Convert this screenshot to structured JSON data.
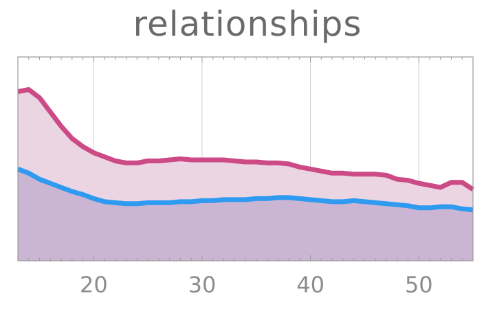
{
  "chart_data": {
    "type": "area",
    "title": "relationships",
    "xlabel": "",
    "ylabel": "",
    "xlim": [
      13,
      55
    ],
    "ylim": [
      0,
      1
    ],
    "x_ticks": [
      20,
      30,
      40,
      50
    ],
    "grid": "vertical",
    "colors": {
      "upper_line": "#cc4a86",
      "upper_fill": "#ecd5e2",
      "lower_line": "#2e9af0",
      "lower_fill": "#cab5d3"
    },
    "x": [
      13,
      14,
      15,
      16,
      17,
      18,
      19,
      20,
      21,
      22,
      23,
      24,
      25,
      26,
      27,
      28,
      29,
      30,
      31,
      32,
      33,
      34,
      35,
      36,
      37,
      38,
      39,
      40,
      41,
      42,
      43,
      44,
      45,
      46,
      47,
      48,
      49,
      50,
      51,
      52,
      53,
      54,
      55
    ],
    "series": [
      {
        "key": "upper",
        "values": [
          0.83,
          0.84,
          0.8,
          0.73,
          0.66,
          0.6,
          0.56,
          0.53,
          0.51,
          0.49,
          0.48,
          0.48,
          0.49,
          0.49,
          0.495,
          0.5,
          0.495,
          0.495,
          0.495,
          0.495,
          0.49,
          0.485,
          0.485,
          0.48,
          0.48,
          0.475,
          0.46,
          0.45,
          0.44,
          0.43,
          0.43,
          0.425,
          0.425,
          0.425,
          0.42,
          0.4,
          0.395,
          0.38,
          0.37,
          0.36,
          0.385,
          0.385,
          0.35
        ]
      },
      {
        "key": "lower",
        "values": [
          0.45,
          0.43,
          0.4,
          0.38,
          0.36,
          0.34,
          0.325,
          0.305,
          0.29,
          0.285,
          0.28,
          0.28,
          0.285,
          0.285,
          0.285,
          0.29,
          0.29,
          0.295,
          0.295,
          0.3,
          0.3,
          0.3,
          0.305,
          0.305,
          0.31,
          0.31,
          0.305,
          0.3,
          0.295,
          0.29,
          0.29,
          0.295,
          0.29,
          0.285,
          0.28,
          0.275,
          0.27,
          0.26,
          0.26,
          0.265,
          0.265,
          0.255,
          0.25
        ]
      }
    ]
  }
}
